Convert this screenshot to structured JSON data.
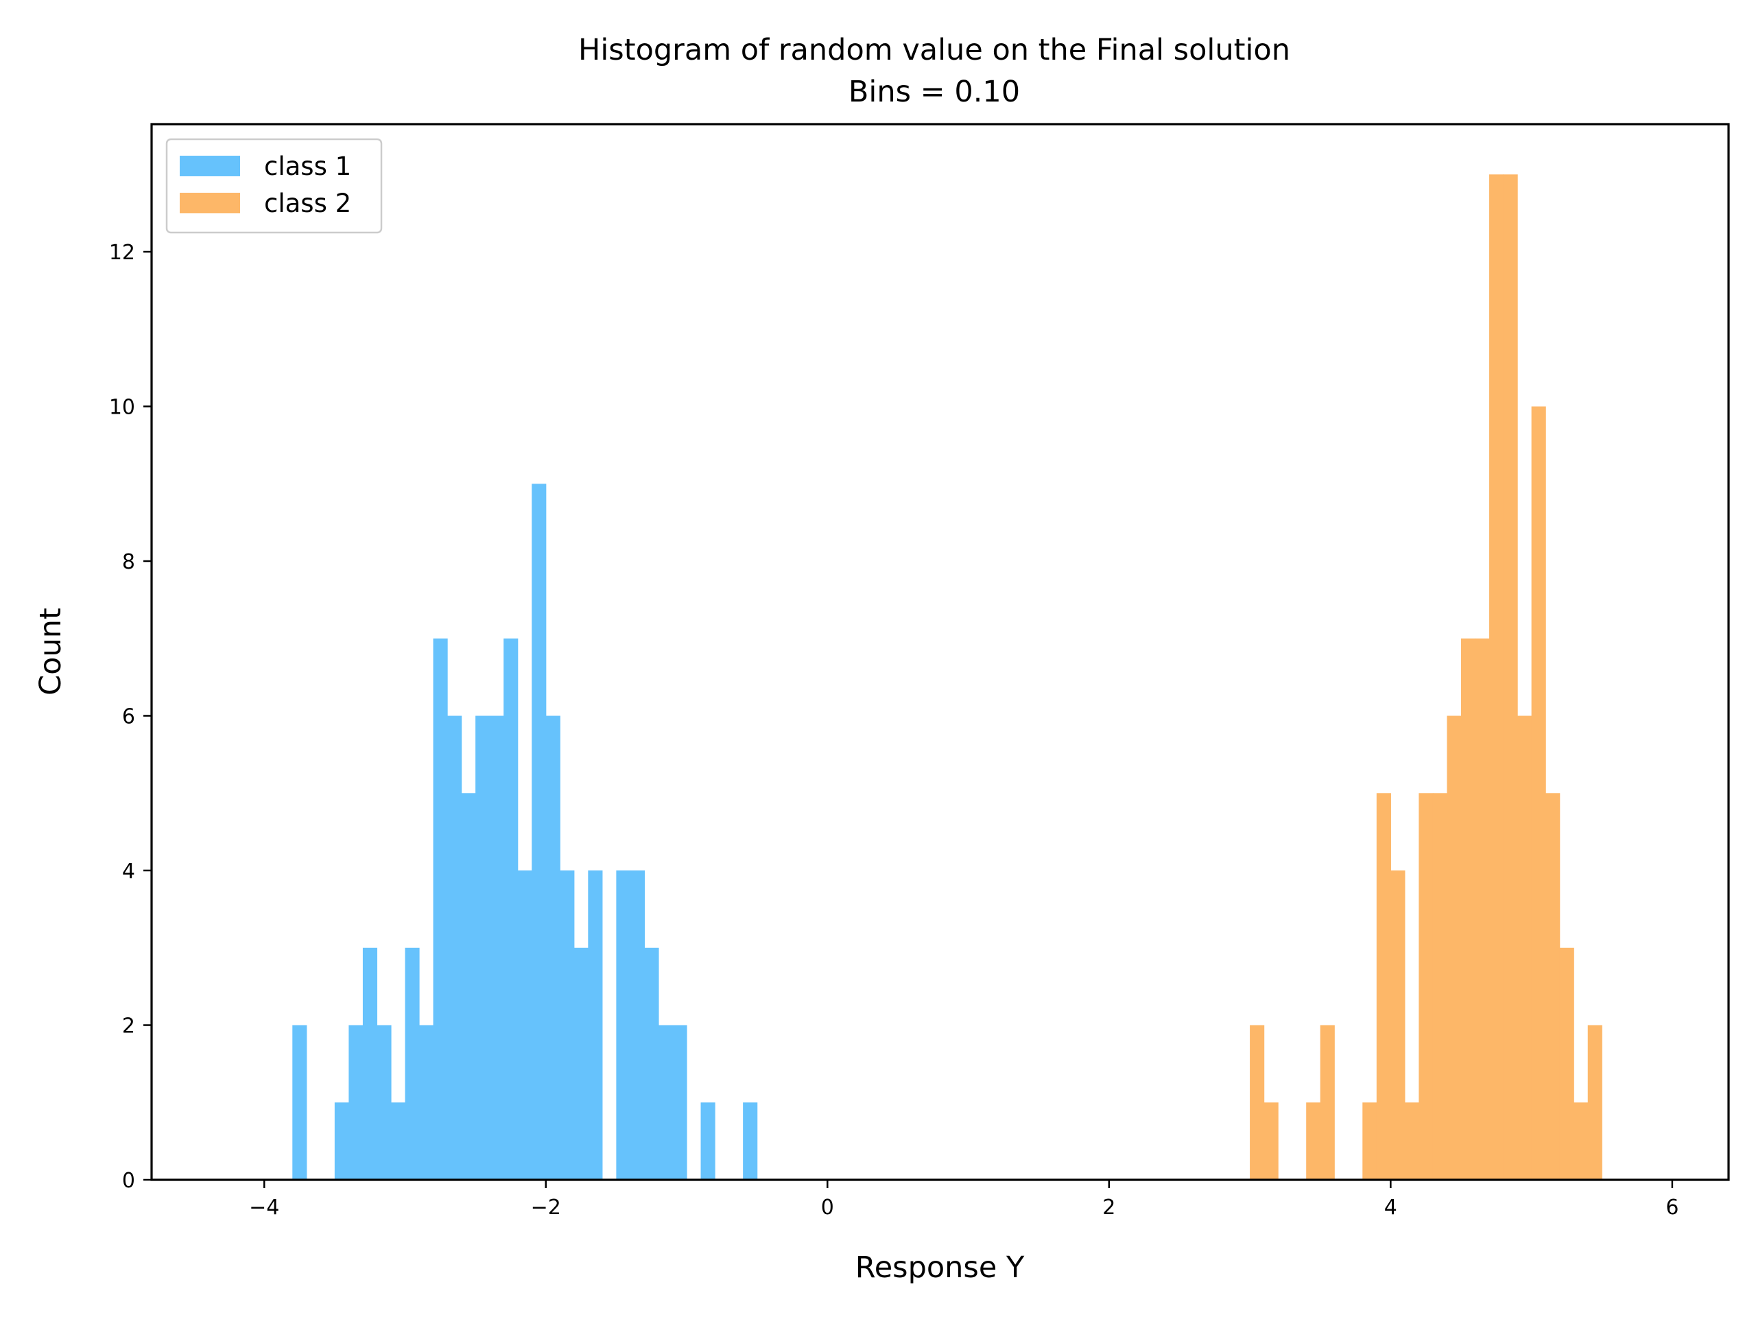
{
  "chart_data": {
    "type": "bar",
    "title": "Histogram of random value on the Final solution",
    "subtitle": "Bins = 0.10",
    "xlabel": "Response Y",
    "ylabel": "Count",
    "xlim": [
      -4.8,
      6.4
    ],
    "ylim": [
      0,
      13.65
    ],
    "xticks": [
      -4,
      -2,
      0,
      2,
      4,
      6
    ],
    "xtick_labels": [
      "−4",
      "−2",
      "0",
      "2",
      "4",
      "6"
    ],
    "yticks": [
      0,
      2,
      4,
      6,
      8,
      10,
      12
    ],
    "ytick_labels": [
      "0",
      "2",
      "4",
      "6",
      "8",
      "10",
      "12"
    ],
    "bin_width": 0.1,
    "grid": false,
    "legend_position": "top-left",
    "series": [
      {
        "name": "class 1",
        "color": "#66c2fc",
        "bin_starts": [
          -3.8,
          -3.5,
          -3.4,
          -3.3,
          -3.2,
          -3.1,
          -3.0,
          -2.9,
          -2.8,
          -2.7,
          -2.6,
          -2.5,
          -2.4,
          -2.3,
          -2.2,
          -2.1,
          -2.0,
          -1.9,
          -1.8,
          -1.7,
          -1.6,
          -1.5,
          -1.4,
          -1.3,
          -1.2,
          -1.1,
          -0.9,
          -0.6
        ],
        "counts": [
          2,
          1,
          2,
          3,
          2,
          1,
          3,
          2,
          7,
          6,
          5,
          6,
          6,
          7,
          4,
          9,
          6,
          4,
          3,
          4,
          0,
          4,
          4,
          3,
          2,
          2,
          1,
          1
        ]
      },
      {
        "name": "class 2",
        "color": "#fdb768",
        "bin_starts": [
          3.0,
          3.1,
          3.4,
          3.5,
          3.8,
          3.9,
          4.0,
          4.1,
          4.2,
          4.3,
          4.4,
          4.5,
          4.6,
          4.7,
          4.8,
          4.9,
          5.0,
          5.1,
          5.2,
          5.3,
          5.4
        ],
        "counts": [
          2,
          1,
          1,
          2,
          1,
          5,
          4,
          1,
          5,
          5,
          6,
          7,
          7,
          13,
          13,
          6,
          10,
          5,
          3,
          1,
          2
        ]
      }
    ]
  }
}
